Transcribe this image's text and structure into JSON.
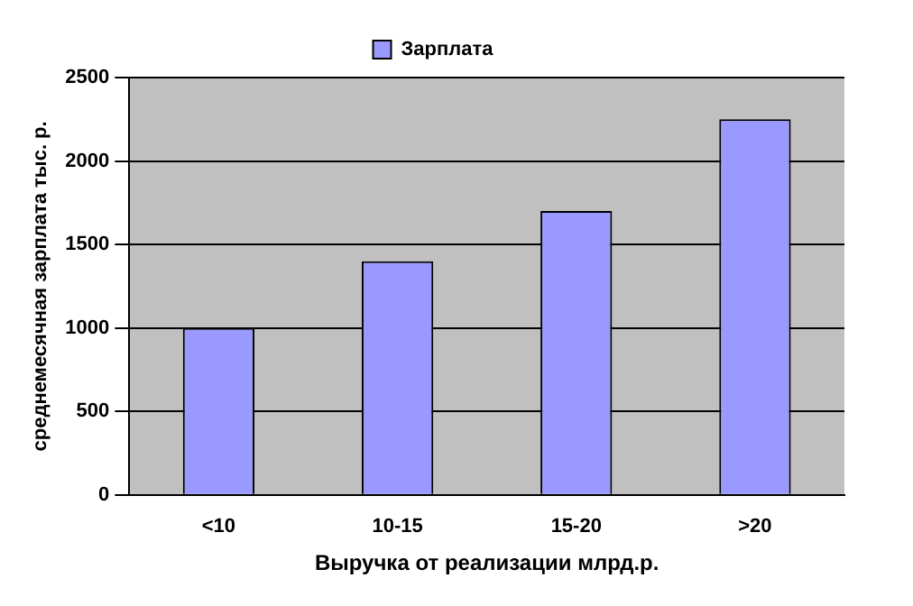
{
  "chart_data": {
    "type": "bar",
    "categories": [
      "<10",
      "10-15",
      "15-20",
      ">20"
    ],
    "series": [
      {
        "name": "Зарплата",
        "color": "#9999ff",
        "values": [
          1000,
          1400,
          1700,
          2250
        ]
      }
    ],
    "xlabel": "Выручка от реализации млрд.р.",
    "ylabel": "среднемесячная зарплата тыс. р.",
    "ylim": [
      0,
      2500
    ],
    "yticks": [
      0,
      500,
      1000,
      1500,
      2000,
      2500
    ],
    "grid": "y",
    "legend": "top"
  }
}
